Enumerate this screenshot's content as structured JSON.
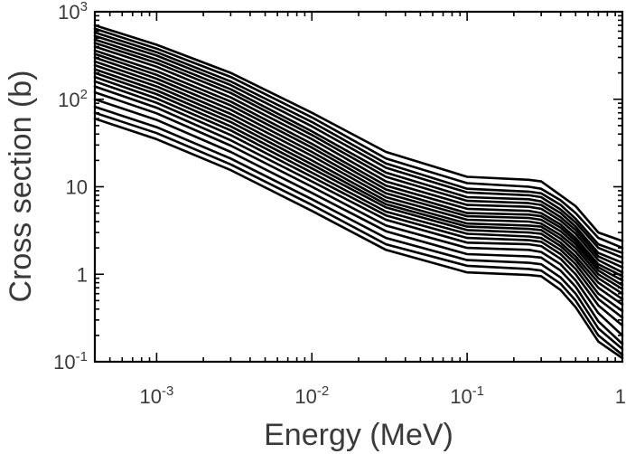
{
  "chart_data": {
    "type": "line",
    "xlabel": "Energy (MeV)",
    "ylabel": "Cross section (b)",
    "xscale": "log",
    "yscale": "log",
    "xlim": [
      0.0004,
      1
    ],
    "ylim": [
      0.1,
      1000
    ],
    "grid": false,
    "legend": "none",
    "line_color": "#000000",
    "x_ticks": [
      {
        "value": 0.001,
        "base": "10",
        "exp": "-3"
      },
      {
        "value": 0.01,
        "base": "10",
        "exp": "-2"
      },
      {
        "value": 0.1,
        "base": "10",
        "exp": "-1"
      },
      {
        "value": 1,
        "base": "1",
        "exp": ""
      }
    ],
    "y_ticks": [
      {
        "value": 0.1,
        "base": "10",
        "exp": "-1"
      },
      {
        "value": 1,
        "base": "1",
        "exp": ""
      },
      {
        "value": 10,
        "base": "10",
        "exp": ""
      },
      {
        "value": 100,
        "base": "10",
        "exp": "2"
      },
      {
        "value": 1000,
        "base": "10",
        "exp": "3"
      }
    ],
    "x": [
      0.0004,
      0.001,
      0.003,
      0.01,
      0.03,
      0.1,
      0.25,
      0.3,
      0.4,
      0.5,
      0.7,
      1
    ],
    "series": [
      {
        "values": [
          700,
          420,
          200,
          70,
          25,
          13,
          12,
          11.5,
          8.0,
          6.0,
          3.0,
          2.4
        ]
      },
      {
        "values": [
          640,
          380,
          180,
          62,
          21,
          11,
          10,
          9.5,
          7.0,
          5.0,
          2.6,
          2.0
        ]
      },
      {
        "values": [
          580,
          345,
          160,
          55,
          18.5,
          9.5,
          8.8,
          8.4,
          6.2,
          4.3,
          2.2,
          1.75
        ]
      },
      {
        "values": [
          530,
          315,
          145,
          49,
          16.5,
          8.6,
          8.0,
          7.6,
          5.5,
          3.9,
          2.0,
          1.55
        ]
      },
      {
        "values": [
          480,
          285,
          130,
          43,
          14.5,
          7.6,
          7.2,
          6.8,
          5.0,
          3.5,
          1.75,
          1.35
        ]
      },
      {
        "values": [
          440,
          260,
          118,
          39,
          13,
          6.9,
          6.5,
          6.2,
          4.5,
          3.2,
          1.6,
          1.2
        ]
      },
      {
        "values": [
          400,
          235,
          105,
          35,
          11.5,
          6.2,
          5.9,
          5.6,
          4.1,
          2.9,
          1.45,
          1.05
        ]
      },
      {
        "values": [
          360,
          210,
          94,
          31,
          10.3,
          5.6,
          5.3,
          5.0,
          3.7,
          2.6,
          1.3,
          0.95
        ]
      },
      {
        "values": [
          330,
          190,
          85,
          28,
          9.3,
          5.0,
          4.8,
          4.6,
          3.4,
          2.4,
          1.2,
          0.85
        ]
      },
      {
        "values": [
          300,
          172,
          76,
          25,
          8.4,
          4.6,
          4.4,
          4.2,
          3.1,
          2.2,
          1.1,
          0.75
        ]
      },
      {
        "values": [
          270,
          155,
          68,
          22.5,
          7.6,
          4.2,
          4.0,
          3.8,
          2.8,
          2.0,
          1.0,
          0.68
        ]
      },
      {
        "values": [
          245,
          140,
          61,
          20,
          6.9,
          3.8,
          3.6,
          3.5,
          2.55,
          1.8,
          0.9,
          0.6
        ]
      },
      {
        "values": [
          220,
          126,
          55,
          18,
          6.3,
          3.5,
          3.3,
          3.2,
          2.3,
          1.6,
          0.8,
          0.52
        ]
      },
      {
        "values": [
          200,
          114,
          49,
          16.2,
          5.8,
          3.2,
          3.0,
          2.9,
          2.1,
          1.45,
          0.7,
          0.45
        ]
      },
      {
        "values": [
          180,
          102,
          44,
          14.5,
          5.2,
          2.9,
          2.7,
          2.6,
          1.9,
          1.3,
          0.6,
          0.38
        ]
      },
      {
        "values": [
          160,
          91,
          39,
          13,
          4.7,
          2.6,
          2.45,
          2.35,
          1.7,
          1.15,
          0.52,
          0.32
        ]
      },
      {
        "values": [
          140,
          80,
          34,
          11.5,
          4.2,
          2.3,
          2.2,
          2.1,
          1.5,
          1.0,
          0.44,
          0.26
        ]
      },
      {
        "values": [
          120,
          69,
          29.5,
          10,
          3.6,
          2.0,
          1.9,
          1.8,
          1.3,
          0.85,
          0.36,
          0.2
        ]
      },
      {
        "values": [
          100,
          58,
          25,
          8.5,
          3.1,
          1.7,
          1.6,
          1.55,
          1.1,
          0.72,
          0.29,
          0.16
        ]
      },
      {
        "values": [
          82,
          48,
          21,
          7.2,
          2.6,
          1.45,
          1.35,
          1.3,
          0.92,
          0.6,
          0.24,
          0.14
        ]
      },
      {
        "values": [
          70,
          41,
          18,
          6.2,
          2.2,
          1.25,
          1.15,
          1.1,
          0.78,
          0.5,
          0.2,
          0.12
        ]
      },
      {
        "values": [
          60,
          35,
          15.5,
          5.3,
          1.9,
          1.05,
          0.98,
          0.95,
          0.66,
          0.42,
          0.17,
          0.11
        ]
      }
    ]
  }
}
